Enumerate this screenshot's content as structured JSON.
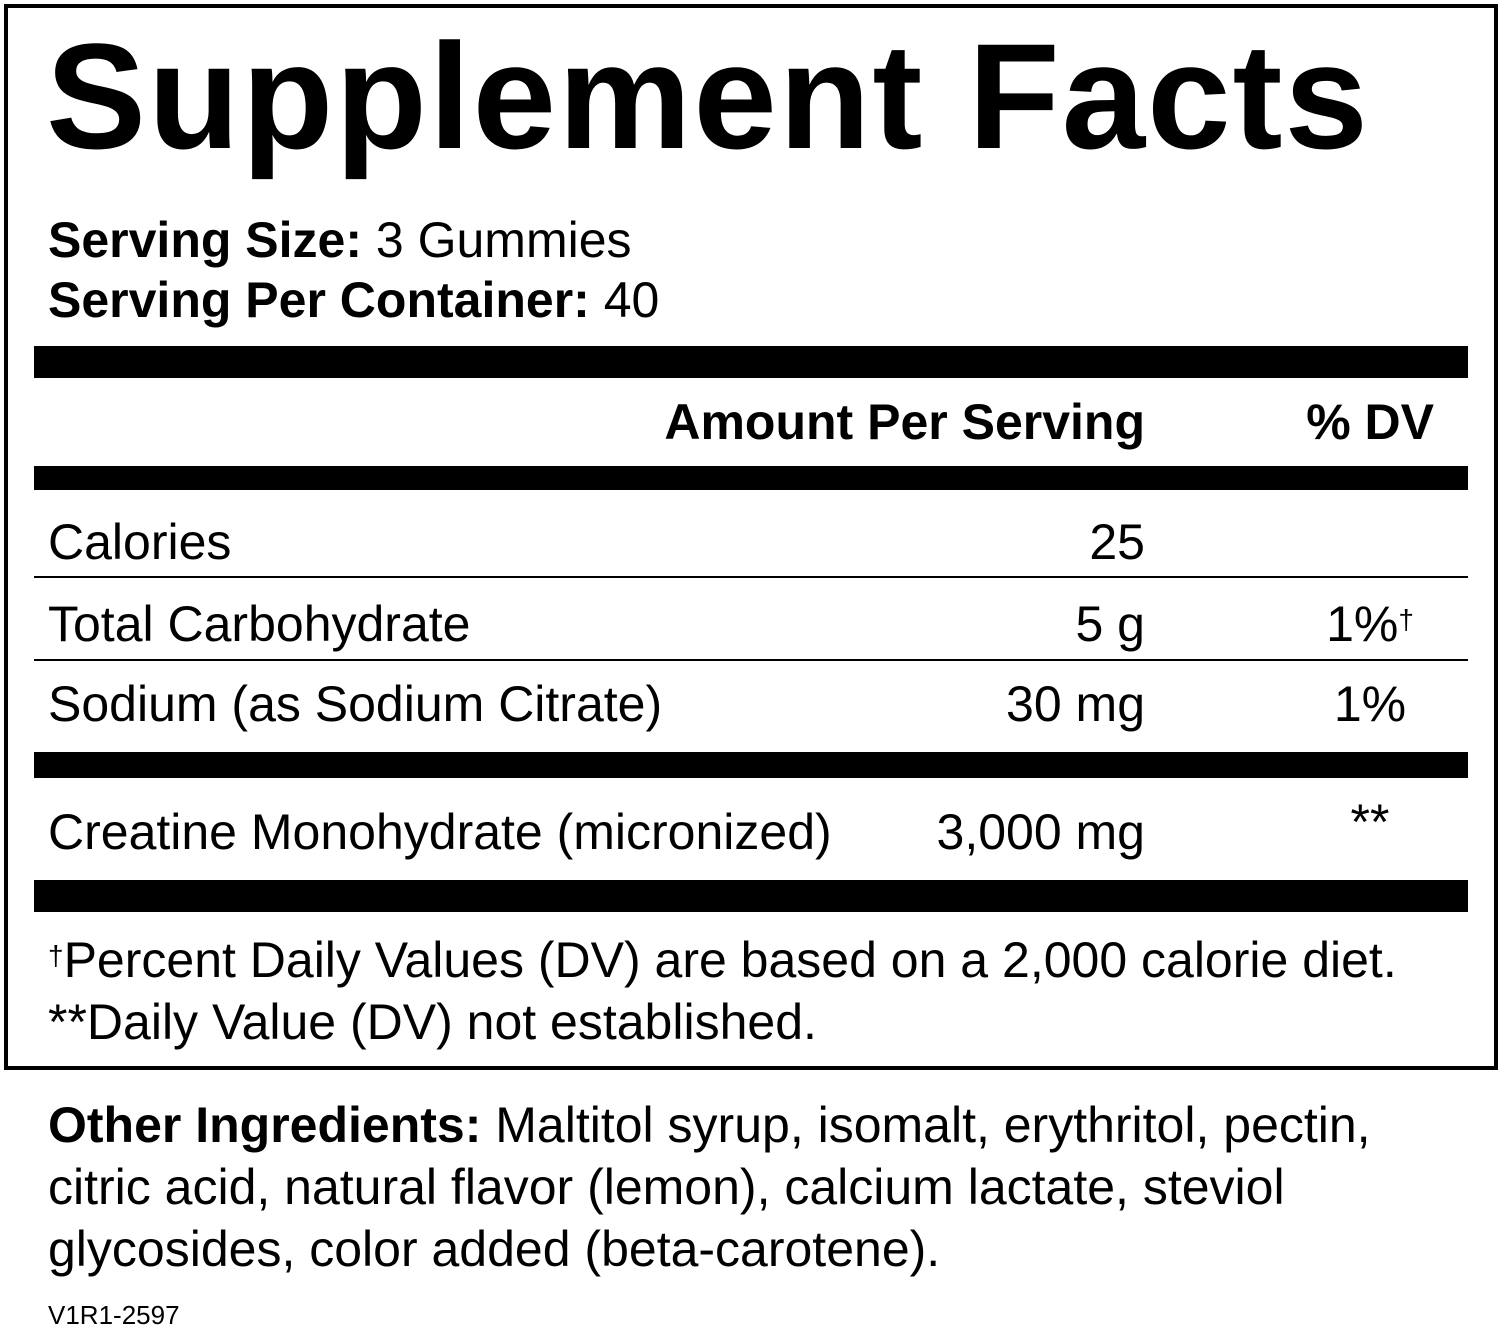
{
  "title": "Supplement Facts",
  "serving_size": {
    "label": "Serving Size:",
    "value": "3 Gummies"
  },
  "servings_per_container": {
    "label": "Serving Per Container:",
    "value": "40"
  },
  "header": {
    "amount": "Amount Per Serving",
    "dv": "% DV"
  },
  "rows": [
    {
      "name": "Calories",
      "amount": "25"
    },
    {
      "name": "Total Carbohydrate",
      "amount": "5 g",
      "dv": "1%",
      "dv_mark": "†"
    },
    {
      "name": "Sodium (as Sodium Citrate)",
      "amount": "30 mg",
      "dv": "1%"
    },
    {
      "name": "Creatine Monohydrate (micronized)",
      "amount": "3,000 mg",
      "dv": "**"
    }
  ],
  "footnotes": [
    {
      "mark": "†",
      "text": "Percent Daily Values (DV) are based on a 2,000 calorie diet."
    },
    {
      "text": "**Daily Value (DV) not established."
    }
  ],
  "other_ingredients": {
    "label": "Other Ingredients:",
    "text": "Maltitol syrup, isomalt, erythritol, pectin, citric acid, natural flavor (lemon), calcium lactate, steviol glycosides, color added (beta-carotene)."
  },
  "code": "V1R1-2597"
}
